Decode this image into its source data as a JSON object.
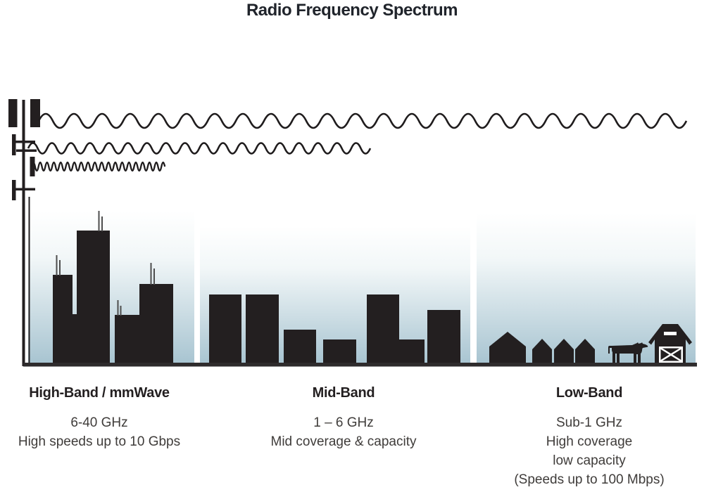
{
  "title": "Radio Frequency Spectrum",
  "bands": [
    {
      "name": "High-Band / mmWave",
      "lines": [
        "6-40 GHz",
        "High speeds up to 10 Gbps"
      ]
    },
    {
      "name": "Mid-Band",
      "lines": [
        "1 – 6 GHz",
        "Mid coverage & capacity"
      ]
    },
    {
      "name": "Low-Band",
      "lines": [
        "Sub-1 GHz",
        "High coverage",
        "low capacity",
        "(Speeds up to 100 Mbps)"
      ]
    }
  ],
  "colors": {
    "ink": "#231f20",
    "wave": "#1f1c1d",
    "sky_top": "#ffffff",
    "sky_bottom": "#a6c3d0",
    "ground": "#2e2b2c",
    "antenna_spike": "#4d4d4d"
  },
  "icons": {
    "transmitter": "cell-tower-icon",
    "wave_long": "low-frequency-wave-icon",
    "wave_medium": "mid-frequency-wave-icon",
    "wave_short": "high-frequency-wave-icon",
    "high_band_scene": "city-skyline-icon",
    "mid_band_scene": "town-skyline-icon",
    "low_band_scene": "rural-scene-icon"
  }
}
